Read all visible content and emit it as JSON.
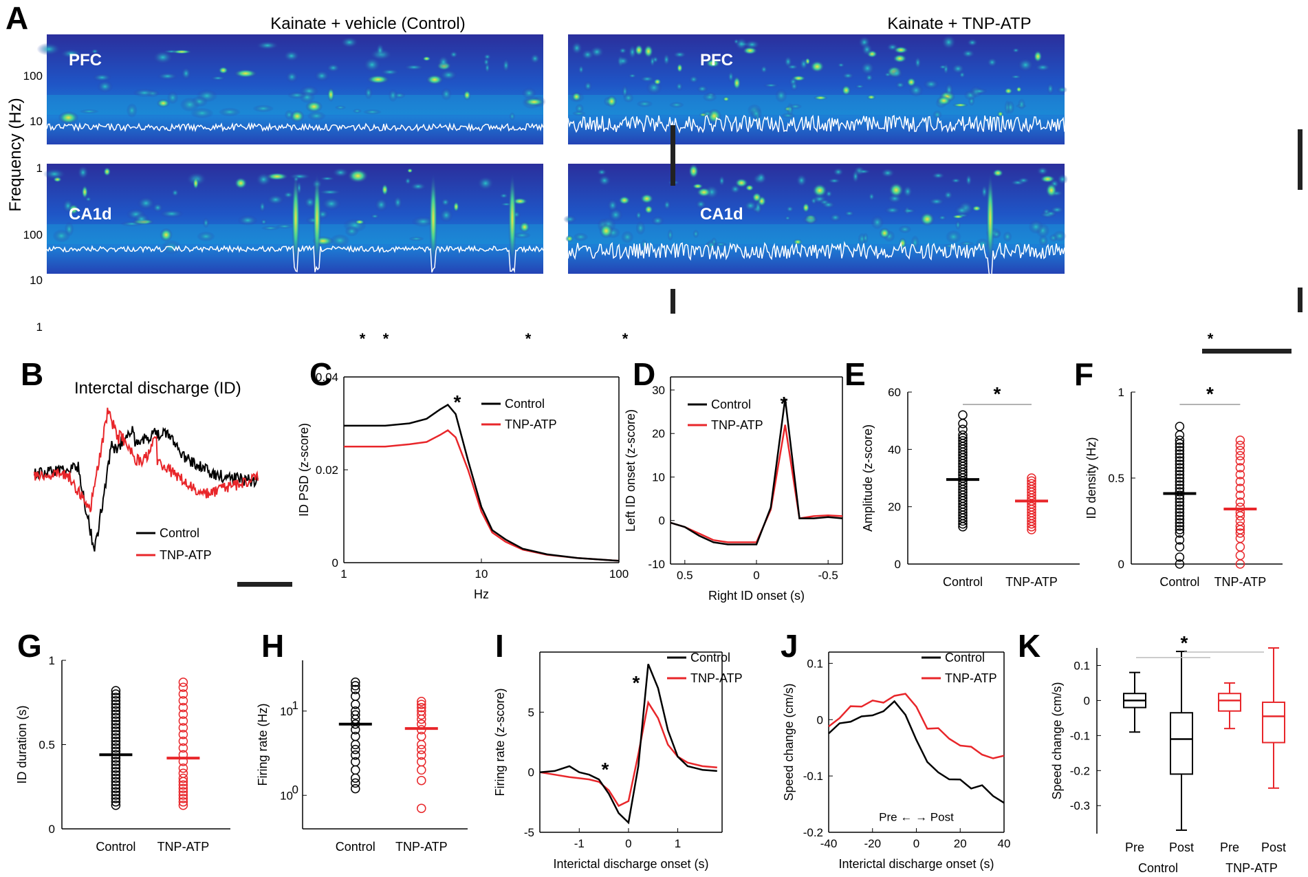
{
  "colors": {
    "control": "#000000",
    "tnp": "#e8262a",
    "spec_bg": "#2a36a8",
    "spec_mid": "#1c8fd8",
    "spec_hot": "#f0e23c"
  },
  "panelA": {
    "letter": "A",
    "left_title": "Kainate + vehicle (Control)",
    "right_title": "Kainate + TNP-ATP",
    "ylabel": "Frequency (Hz)",
    "yticks": [
      "100",
      "10",
      "1"
    ],
    "regions": [
      "PFC",
      "CA1d"
    ],
    "star": "*"
  },
  "panelB": {
    "letter": "B",
    "title": "Interctal discharge (ID)",
    "legend": [
      "Control",
      "TNP-ATP"
    ]
  },
  "chart_data": [
    {
      "id": "C",
      "type": "line",
      "title": "",
      "xlabel": "Hz",
      "ylabel": "ID PSD (z-score)",
      "xscale": "log",
      "xlim": [
        1,
        100
      ],
      "ylim": [
        0,
        0.04
      ],
      "xticks": [
        "1",
        "10",
        "100"
      ],
      "yticks": [
        "0",
        "0.02",
        "0.04"
      ],
      "series": [
        {
          "name": "Control",
          "x": [
            1,
            2,
            3,
            4,
            5,
            5.7,
            6.5,
            8,
            10,
            12,
            15,
            20,
            30,
            50,
            100
          ],
          "y": [
            0.0295,
            0.0295,
            0.03,
            0.031,
            0.033,
            0.034,
            0.032,
            0.022,
            0.012,
            0.007,
            0.005,
            0.003,
            0.0018,
            0.001,
            0.0004
          ]
        },
        {
          "name": "TNP-ATP",
          "x": [
            1,
            2,
            3,
            4,
            5,
            5.7,
            6.5,
            8,
            10,
            12,
            15,
            20,
            30,
            50,
            100
          ],
          "y": [
            0.025,
            0.025,
            0.0255,
            0.026,
            0.0275,
            0.0285,
            0.027,
            0.02,
            0.011,
            0.0065,
            0.0045,
            0.0028,
            0.0017,
            0.001,
            0.0004
          ]
        }
      ],
      "annotation": "*",
      "legend": [
        "Control",
        "TNP-ATP"
      ]
    },
    {
      "id": "D",
      "type": "line",
      "xlabel": "Right ID onset (s)",
      "ylabel": "Left ID onset (z-score)",
      "xlim": [
        0.6,
        -0.6
      ],
      "ylim": [
        -10,
        33
      ],
      "xticks": [
        "0.5",
        "0",
        "-0.5"
      ],
      "yticks": [
        "-10",
        "0",
        "10",
        "20",
        "30"
      ],
      "series": [
        {
          "name": "Control",
          "x": [
            0.6,
            0.5,
            0.4,
            0.3,
            0.2,
            0.1,
            0.0,
            -0.1,
            -0.2,
            -0.3,
            -0.4,
            -0.5,
            -0.6
          ],
          "y": [
            -0.5,
            -1.5,
            -3.5,
            -5,
            -5.5,
            -5.5,
            -5.5,
            3,
            28,
            0.5,
            0.5,
            0.8,
            0.5
          ]
        },
        {
          "name": "TNP-ATP",
          "x": [
            0.6,
            0.5,
            0.4,
            0.3,
            0.2,
            0.1,
            0.0,
            -0.1,
            -0.2,
            -0.3,
            -0.4,
            -0.5,
            -0.6
          ],
          "y": [
            -0.5,
            -1.5,
            -3,
            -4.5,
            -5,
            -5,
            -5,
            2.5,
            22,
            0.5,
            1,
            1.2,
            1
          ]
        }
      ],
      "annotation": "*",
      "legend": [
        "Control",
        "TNP-ATP"
      ]
    },
    {
      "id": "E",
      "type": "scatter",
      "ylabel": "Amplitude (z-score)",
      "ylim": [
        0,
        60
      ],
      "yticks": [
        "0",
        "20",
        "40",
        "60"
      ],
      "categories": [
        "Control",
        "TNP-ATP"
      ],
      "series": [
        {
          "name": "Control",
          "mean": 29.5,
          "values": [
            13,
            14,
            15,
            16,
            17,
            18,
            19,
            20,
            21,
            22,
            23,
            24,
            25,
            26,
            27,
            28,
            29,
            30,
            31,
            32,
            33,
            34,
            35,
            36,
            37,
            38,
            39,
            40,
            41,
            42,
            43,
            44,
            45,
            47,
            49,
            52
          ]
        },
        {
          "name": "TNP-ATP",
          "mean": 22,
          "values": [
            12,
            13,
            14,
            15,
            16,
            17,
            18,
            19,
            20,
            21,
            22,
            23,
            24,
            25,
            26,
            27,
            28,
            29,
            30
          ]
        }
      ],
      "annotation": "*"
    },
    {
      "id": "F",
      "type": "scatter",
      "ylabel": "ID density (Hz)",
      "ylim": [
        0,
        1
      ],
      "yticks": [
        "0",
        "0.5",
        "1"
      ],
      "categories": [
        "Control",
        "TNP-ATP"
      ],
      "series": [
        {
          "name": "Control",
          "mean": 0.41,
          "values": [
            0,
            0.04,
            0.1,
            0.14,
            0.18,
            0.2,
            0.22,
            0.24,
            0.26,
            0.28,
            0.3,
            0.32,
            0.34,
            0.36,
            0.38,
            0.4,
            0.42,
            0.44,
            0.46,
            0.48,
            0.5,
            0.52,
            0.54,
            0.56,
            0.58,
            0.6,
            0.62,
            0.64,
            0.66,
            0.68,
            0.7,
            0.72,
            0.75,
            0.8
          ]
        },
        {
          "name": "TNP-ATP",
          "mean": 0.32,
          "values": [
            0,
            0.05,
            0.1,
            0.15,
            0.18,
            0.2,
            0.22,
            0.25,
            0.28,
            0.3,
            0.33,
            0.36,
            0.4,
            0.44,
            0.48,
            0.52,
            0.56,
            0.6,
            0.63,
            0.66,
            0.69,
            0.72
          ]
        }
      ],
      "annotation": "*"
    },
    {
      "id": "G",
      "type": "scatter",
      "ylabel": "ID duration (s)",
      "ylim": [
        0,
        1
      ],
      "yticks": [
        "0",
        "0.5",
        "1"
      ],
      "categories": [
        "Control",
        "TNP-ATP"
      ],
      "series": [
        {
          "name": "Control",
          "mean": 0.44,
          "values": [
            0.14,
            0.16,
            0.18,
            0.2,
            0.22,
            0.24,
            0.26,
            0.28,
            0.3,
            0.32,
            0.34,
            0.36,
            0.38,
            0.4,
            0.42,
            0.44,
            0.46,
            0.48,
            0.5,
            0.52,
            0.54,
            0.56,
            0.58,
            0.6,
            0.62,
            0.64,
            0.66,
            0.68,
            0.7,
            0.72,
            0.74,
            0.76,
            0.78,
            0.8,
            0.82
          ]
        },
        {
          "name": "TNP-ATP",
          "mean": 0.42,
          "values": [
            0.14,
            0.16,
            0.18,
            0.2,
            0.22,
            0.24,
            0.26,
            0.28,
            0.3,
            0.33,
            0.36,
            0.4,
            0.44,
            0.48,
            0.52,
            0.56,
            0.6,
            0.64,
            0.68,
            0.72,
            0.76,
            0.8,
            0.84,
            0.87
          ]
        }
      ]
    },
    {
      "id": "H",
      "type": "scatter",
      "ylabel": "Firing rate (Hz)",
      "yscale": "log",
      "ylim": [
        0.4,
        40
      ],
      "yticks": [
        {
          "base": "10",
          "exp": "0",
          "value": 1
        },
        {
          "base": "10",
          "exp": "1",
          "value": 10
        }
      ],
      "categories": [
        "Control",
        "TNP-ATP"
      ],
      "series": [
        {
          "name": "Control",
          "mean": 7,
          "values": [
            1.2,
            1.4,
            1.6,
            2,
            2.5,
            3,
            3.5,
            4,
            5,
            6,
            7,
            8,
            9,
            10,
            12,
            15,
            18,
            20,
            22
          ]
        },
        {
          "name": "TNP-ATP",
          "mean": 6.2,
          "values": [
            0.7,
            1.5,
            2,
            2.5,
            3,
            3.5,
            4,
            5,
            6,
            7,
            8,
            9,
            10,
            11,
            12,
            13
          ]
        }
      ]
    },
    {
      "id": "I",
      "type": "line",
      "xlabel": "Interictal discharge onset (s)",
      "ylabel": "Firing rate (z-score)",
      "xlim": [
        -1.8,
        1.9
      ],
      "ylim": [
        -5,
        10
      ],
      "xticks": [
        "-1",
        "0",
        "1"
      ],
      "yticks": [
        "-5",
        "0",
        "5"
      ],
      "series": [
        {
          "name": "Control",
          "x": [
            -1.8,
            -1.5,
            -1.2,
            -1.0,
            -0.8,
            -0.6,
            -0.4,
            -0.2,
            0.0,
            0.2,
            0.4,
            0.6,
            0.8,
            1.0,
            1.2,
            1.5,
            1.8
          ],
          "y": [
            0,
            0.1,
            0.5,
            0,
            -0.2,
            -0.6,
            -1.8,
            -3.4,
            -4.2,
            0.5,
            9,
            7,
            3.5,
            1.3,
            0.5,
            0.2,
            0.1
          ]
        },
        {
          "name": "TNP-ATP",
          "x": [
            -1.8,
            -1.5,
            -1.2,
            -1.0,
            -0.8,
            -0.6,
            -0.4,
            -0.2,
            0.0,
            0.2,
            0.4,
            0.6,
            0.8,
            1.0,
            1.2,
            1.5,
            1.8
          ],
          "y": [
            0,
            -0.2,
            -0.4,
            -0.5,
            -0.6,
            -0.8,
            -1.5,
            -2.8,
            -2.4,
            1.5,
            5.8,
            4.5,
            2.3,
            1.3,
            0.8,
            0.5,
            0.4
          ]
        }
      ],
      "annotation": "*",
      "legend": [
        "Control",
        "TNP-ATP"
      ]
    },
    {
      "id": "J",
      "type": "line",
      "xlabel": "Interictal discharge onset (s)",
      "ylabel": "Speed change (cm/s)",
      "xlim": [
        -40,
        40
      ],
      "ylim": [
        -0.2,
        0.12
      ],
      "xticks": [
        "-40",
        "-20",
        "0",
        "20",
        "40"
      ],
      "yticks": [
        "-0.2",
        "-0.1",
        "0",
        "0.1"
      ],
      "inset_label": "Pre ← → Post",
      "series": [
        {
          "name": "Control",
          "x": [
            -40,
            -35,
            -30,
            -25,
            -20,
            -15,
            -10,
            -5,
            0,
            5,
            10,
            15,
            20,
            25,
            30,
            35,
            40
          ],
          "y": [
            -0.02,
            -0.01,
            0.0,
            0.005,
            0.01,
            0.02,
            0.03,
            0.01,
            -0.03,
            -0.07,
            -0.09,
            -0.1,
            -0.11,
            -0.12,
            -0.12,
            -0.14,
            -0.15
          ]
        },
        {
          "name": "TNP-ATP",
          "x": [
            -40,
            -35,
            -30,
            -25,
            -20,
            -15,
            -10,
            -5,
            0,
            5,
            10,
            15,
            20,
            25,
            30,
            35,
            40
          ],
          "y": [
            -0.01,
            0.0,
            0.02,
            0.02,
            0.03,
            0.03,
            0.04,
            0.04,
            0.02,
            -0.01,
            -0.02,
            -0.04,
            -0.05,
            -0.05,
            -0.06,
            -0.07,
            -0.07
          ]
        }
      ],
      "legend": [
        "Control",
        "TNP-ATP"
      ]
    },
    {
      "id": "K",
      "type": "box",
      "ylabel": "Speed change (cm/s)",
      "ylim": [
        -0.38,
        0.15
      ],
      "yticks": [
        "-0.3",
        "-0.2",
        "-0.1",
        "0",
        "0.1"
      ],
      "categories": [
        "Pre",
        "Post",
        "Pre",
        "Post"
      ],
      "groups": [
        "Control",
        "TNP-ATP"
      ],
      "boxes": [
        {
          "group": "Control",
          "label": "Pre",
          "min": -0.09,
          "q1": -0.02,
          "median": 0.0,
          "q3": 0.02,
          "max": 0.08
        },
        {
          "group": "Control",
          "label": "Post",
          "min": -0.37,
          "q1": -0.21,
          "median": -0.11,
          "q3": -0.035,
          "max": 0.14
        },
        {
          "group": "TNP-ATP",
          "label": "Pre",
          "min": -0.08,
          "q1": -0.03,
          "median": 0.0,
          "q3": 0.02,
          "max": 0.05
        },
        {
          "group": "TNP-ATP",
          "label": "Post",
          "min": -0.25,
          "q1": -0.12,
          "median": -0.045,
          "q3": -0.005,
          "max": 0.15
        }
      ],
      "annotation": "*"
    }
  ],
  "letters": [
    "C",
    "D",
    "E",
    "F",
    "G",
    "H",
    "I",
    "J",
    "K"
  ]
}
